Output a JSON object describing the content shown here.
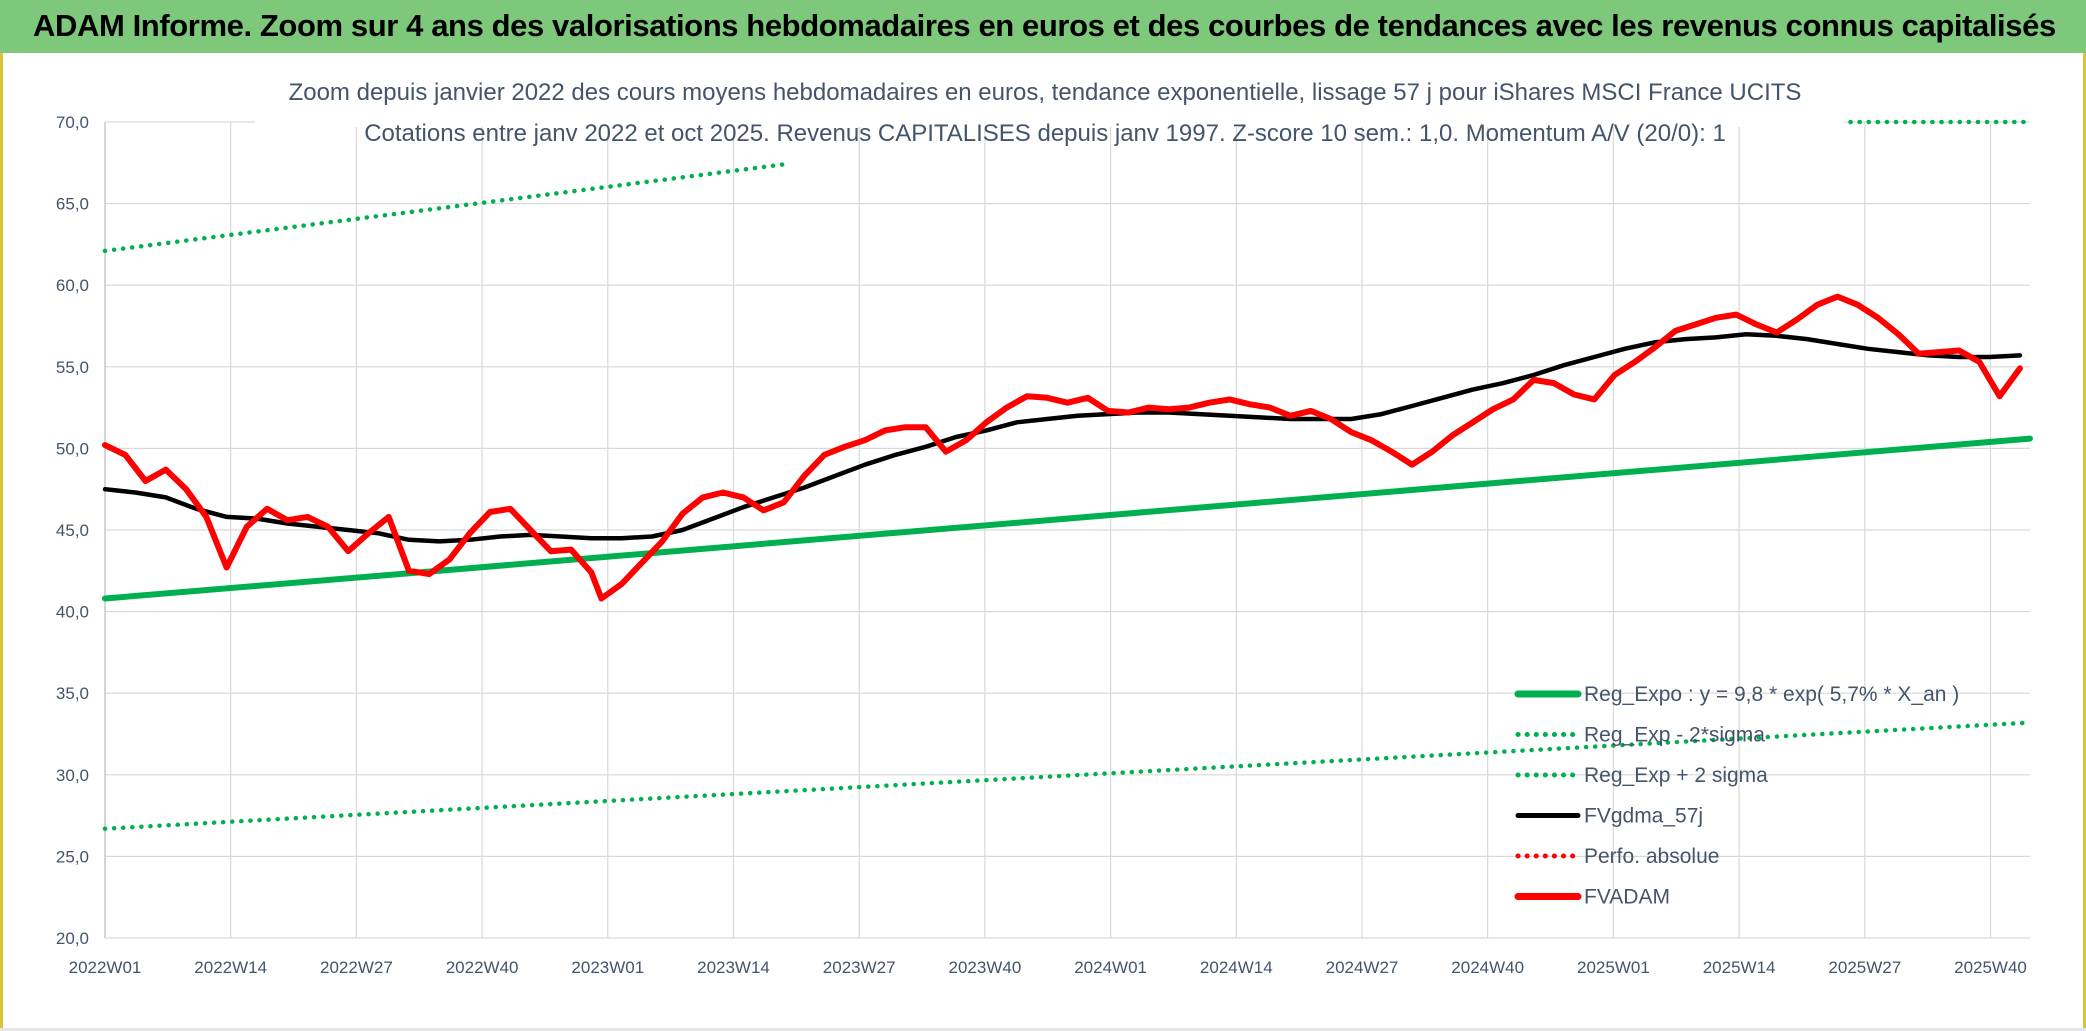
{
  "header": {
    "title": "ADAM Informe. Zoom sur 4 ans des valorisations hebdomadaires en euros et des courbes de tendances avec les revenus connus capitalisés"
  },
  "colors": {
    "banner": "#7dc87a",
    "reg": "#00b050",
    "avg": "#000000",
    "price": "#ff0000",
    "axis_text": "#44546a",
    "grid": "#d9d9d9"
  },
  "chart_data": {
    "type": "line",
    "title": "Zoom depuis janvier 2022 des cours moyens hebdomadaires en euros, tendance exponentielle, lissage 57 j pour iShares MSCI France UCITS",
    "subtitle": "Cotations entre janv 2022 et oct 2025. Revenus CAPITALISES depuis janv 1997. Z-score 10 sem.: 1,0. Momentum A/V (20/0): 1",
    "xlabel": "",
    "ylabel": "",
    "ylim": [
      20,
      70
    ],
    "grid": true,
    "yticks": [
      "20,0",
      "25,0",
      "30,0",
      "35,0",
      "40,0",
      "45,0",
      "50,0",
      "55,0",
      "60,0",
      "65,0",
      "70,0"
    ],
    "xticks": [
      "2022W01",
      "2022W14",
      "2022W27",
      "2022W40",
      "2023W01",
      "2023W14",
      "2023W27",
      "2023W40",
      "2024W01",
      "2024W14",
      "2024W27",
      "2024W40",
      "2025W01",
      "2025W14",
      "2025W27",
      "2025W40"
    ],
    "x_range": [
      0,
      190
    ],
    "legend_position": "bottom-right",
    "series": [
      {
        "name": "Reg_Expo : y = 9,8 * exp( 5,7% *  X_an )",
        "style": "solid",
        "color": "#00b050",
        "points": [
          [
            0,
            40.8
          ],
          [
            190,
            50.6
          ]
        ]
      },
      {
        "name": "Reg_Exp - 2*sigma",
        "style": "dotted",
        "color": "#00b050",
        "points": [
          [
            0,
            26.7
          ],
          [
            190,
            33.2
          ]
        ]
      },
      {
        "name": "Reg_Exp + 2 sigma",
        "style": "dotted",
        "color": "#00b050",
        "points": [
          [
            0,
            62.1
          ],
          [
            67,
            67.4
          ],
          [
            190,
            70.0
          ]
        ],
        "segments": [
          [
            [
              0,
              62.1
            ],
            [
              67,
              67.4
            ]
          ],
          [
            [
              166,
              70.0
            ],
            [
              190,
              70.0
            ]
          ]
        ]
      },
      {
        "name": "FVgdma_57j",
        "style": "solid",
        "color": "#000000",
        "points": [
          [
            0,
            47.5
          ],
          [
            3,
            47.3
          ],
          [
            6,
            47.0
          ],
          [
            9,
            46.3
          ],
          [
            12,
            45.8
          ],
          [
            15,
            45.7
          ],
          [
            18,
            45.4
          ],
          [
            21,
            45.2
          ],
          [
            24,
            45.0
          ],
          [
            27,
            44.8
          ],
          [
            30,
            44.4
          ],
          [
            33,
            44.3
          ],
          [
            36,
            44.4
          ],
          [
            39,
            44.6
          ],
          [
            42,
            44.7
          ],
          [
            45,
            44.6
          ],
          [
            48,
            44.5
          ],
          [
            51,
            44.5
          ],
          [
            54,
            44.6
          ],
          [
            57,
            45.0
          ],
          [
            60,
            45.7
          ],
          [
            63,
            46.4
          ],
          [
            66,
            47.0
          ],
          [
            69,
            47.6
          ],
          [
            72,
            48.3
          ],
          [
            75,
            49.0
          ],
          [
            78,
            49.6
          ],
          [
            81,
            50.1
          ],
          [
            84,
            50.7
          ],
          [
            87,
            51.1
          ],
          [
            90,
            51.6
          ],
          [
            93,
            51.8
          ],
          [
            96,
            52.0
          ],
          [
            99,
            52.1
          ],
          [
            102,
            52.2
          ],
          [
            105,
            52.2
          ],
          [
            108,
            52.1
          ],
          [
            111,
            52.0
          ],
          [
            114,
            51.9
          ],
          [
            117,
            51.8
          ],
          [
            120,
            51.8
          ],
          [
            123,
            51.8
          ],
          [
            126,
            52.1
          ],
          [
            129,
            52.6
          ],
          [
            132,
            53.1
          ],
          [
            135,
            53.6
          ],
          [
            138,
            54.0
          ],
          [
            141,
            54.5
          ],
          [
            144,
            55.1
          ],
          [
            147,
            55.6
          ],
          [
            150,
            56.1
          ],
          [
            153,
            56.5
          ],
          [
            156,
            56.7
          ],
          [
            159,
            56.8
          ],
          [
            162,
            57.0
          ],
          [
            165,
            56.9
          ],
          [
            168,
            56.7
          ],
          [
            171,
            56.4
          ],
          [
            174,
            56.1
          ],
          [
            177,
            55.9
          ],
          [
            180,
            55.7
          ],
          [
            183,
            55.6
          ],
          [
            186,
            55.6
          ],
          [
            189,
            55.7
          ]
        ]
      },
      {
        "name": "Perfo. absolue",
        "style": "dotted",
        "color": "#ff0000",
        "points": []
      },
      {
        "name": "FVADAM",
        "style": "solid",
        "color": "#ff0000",
        "points": [
          [
            0,
            50.2
          ],
          [
            2,
            49.6
          ],
          [
            4,
            48.0
          ],
          [
            6,
            48.7
          ],
          [
            8,
            47.5
          ],
          [
            10,
            45.8
          ],
          [
            12,
            42.7
          ],
          [
            14,
            45.2
          ],
          [
            16,
            46.3
          ],
          [
            18,
            45.6
          ],
          [
            20,
            45.8
          ],
          [
            22,
            45.2
          ],
          [
            24,
            43.7
          ],
          [
            26,
            44.8
          ],
          [
            28,
            45.8
          ],
          [
            30,
            42.5
          ],
          [
            32,
            42.3
          ],
          [
            34,
            43.2
          ],
          [
            36,
            44.8
          ],
          [
            38,
            46.1
          ],
          [
            40,
            46.3
          ],
          [
            42,
            45.0
          ],
          [
            44,
            43.7
          ],
          [
            46,
            43.8
          ],
          [
            48,
            42.4
          ],
          [
            49,
            40.8
          ],
          [
            51,
            41.7
          ],
          [
            53,
            43.0
          ],
          [
            55,
            44.3
          ],
          [
            57,
            46.0
          ],
          [
            59,
            47.0
          ],
          [
            61,
            47.3
          ],
          [
            63,
            47.0
          ],
          [
            65,
            46.2
          ],
          [
            67,
            46.7
          ],
          [
            69,
            48.3
          ],
          [
            71,
            49.6
          ],
          [
            73,
            50.1
          ],
          [
            75,
            50.5
          ],
          [
            77,
            51.1
          ],
          [
            79,
            51.3
          ],
          [
            81,
            51.3
          ],
          [
            83,
            49.8
          ],
          [
            85,
            50.5
          ],
          [
            87,
            51.6
          ],
          [
            89,
            52.5
          ],
          [
            91,
            53.2
          ],
          [
            93,
            53.1
          ],
          [
            95,
            52.8
          ],
          [
            97,
            53.1
          ],
          [
            99,
            52.3
          ],
          [
            101,
            52.2
          ],
          [
            103,
            52.5
          ],
          [
            105,
            52.4
          ],
          [
            107,
            52.5
          ],
          [
            109,
            52.8
          ],
          [
            111,
            53.0
          ],
          [
            113,
            52.7
          ],
          [
            115,
            52.5
          ],
          [
            117,
            52.0
          ],
          [
            119,
            52.3
          ],
          [
            121,
            51.8
          ],
          [
            123,
            51.0
          ],
          [
            125,
            50.5
          ],
          [
            127,
            49.8
          ],
          [
            129,
            49.0
          ],
          [
            131,
            49.8
          ],
          [
            133,
            50.8
          ],
          [
            135,
            51.6
          ],
          [
            137,
            52.4
          ],
          [
            139,
            53.0
          ],
          [
            141,
            54.2
          ],
          [
            143,
            54.0
          ],
          [
            145,
            53.3
          ],
          [
            147,
            53.0
          ],
          [
            149,
            54.5
          ],
          [
            151,
            55.3
          ],
          [
            153,
            56.2
          ],
          [
            155,
            57.2
          ],
          [
            157,
            57.6
          ],
          [
            159,
            58.0
          ],
          [
            161,
            58.2
          ],
          [
            163,
            57.6
          ],
          [
            165,
            57.1
          ],
          [
            167,
            57.9
          ],
          [
            169,
            58.8
          ],
          [
            171,
            59.3
          ],
          [
            173,
            58.8
          ],
          [
            175,
            58.0
          ],
          [
            177,
            57.0
          ],
          [
            179,
            55.8
          ],
          [
            181,
            55.9
          ],
          [
            183,
            56.0
          ],
          [
            185,
            55.3
          ],
          [
            187,
            53.2
          ],
          [
            189,
            54.9
          ]
        ]
      }
    ]
  },
  "legend": [
    {
      "label": "Reg_Expo : y = 9,8 * exp( 5,7% *  X_an )",
      "style": "solid",
      "color": "#00b050",
      "width": 6
    },
    {
      "label": "Reg_Exp - 2*sigma",
      "style": "dotted",
      "color": "#00b050",
      "width": 4
    },
    {
      "label": "Reg_Exp + 2 sigma",
      "style": "dotted",
      "color": "#00b050",
      "width": 4
    },
    {
      "label": "FVgdma_57j",
      "style": "solid",
      "color": "#000000",
      "width": 4
    },
    {
      "label": "Perfo. absolue",
      "style": "dotted",
      "color": "#ff0000",
      "width": 4
    },
    {
      "label": "FVADAM",
      "style": "solid",
      "color": "#ff0000",
      "width": 6
    }
  ]
}
